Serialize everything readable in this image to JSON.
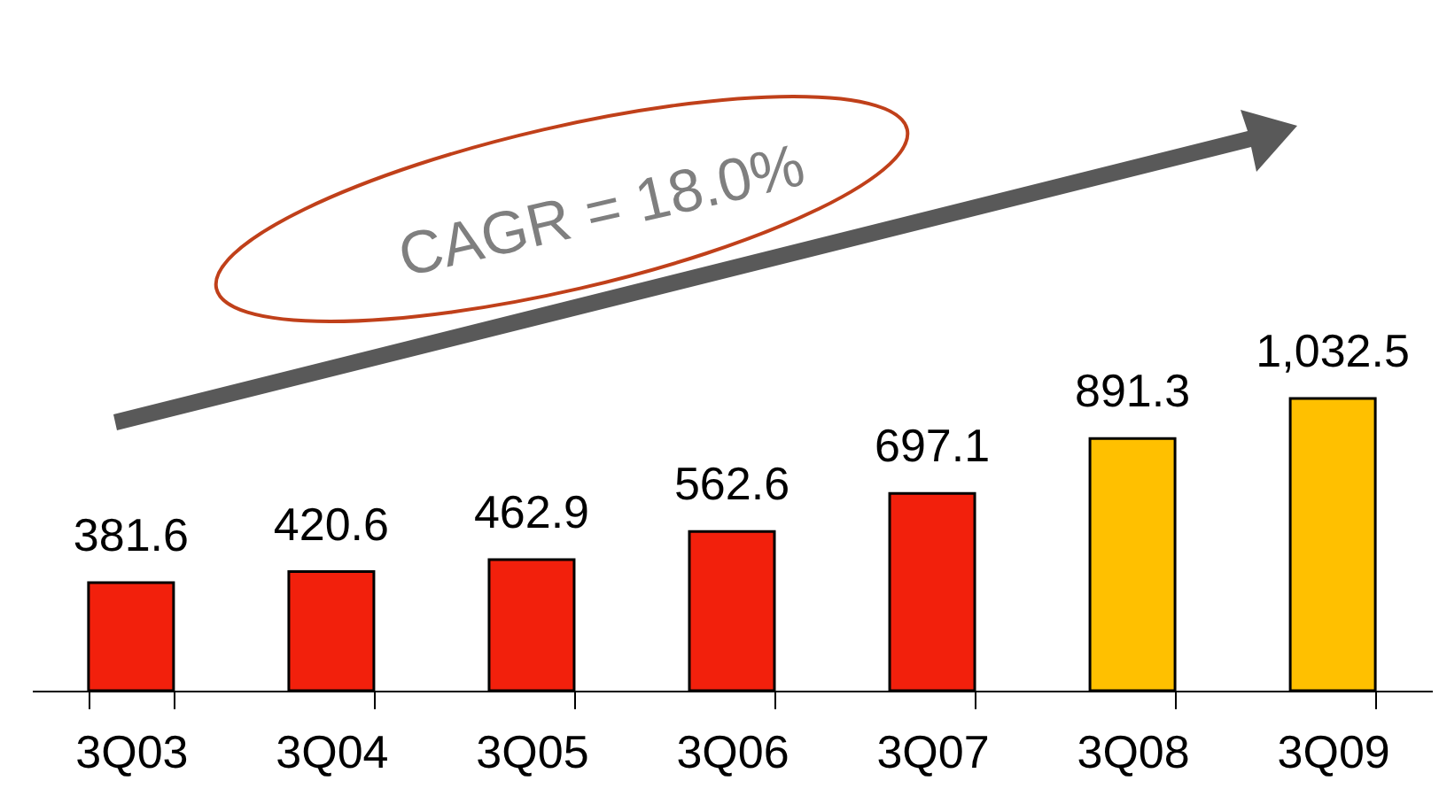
{
  "chart_data": {
    "type": "bar",
    "categories": [
      "3Q03",
      "3Q04",
      "3Q05",
      "3Q06",
      "3Q07",
      "3Q08",
      "3Q09"
    ],
    "values": [
      381.6,
      420.6,
      462.9,
      562.6,
      697.1,
      891.3,
      1032.5
    ],
    "value_labels": [
      "381.6",
      "420.6",
      "462.9",
      "562.6",
      "697.1",
      "891.3",
      "1,032.5"
    ],
    "colors": [
      "#f2200c",
      "#f2200c",
      "#f2200c",
      "#f2200c",
      "#f2200c",
      "#ffc000",
      "#ffc000"
    ],
    "grid": false,
    "annotations": [
      "CAGR = 18.0%"
    ]
  }
}
